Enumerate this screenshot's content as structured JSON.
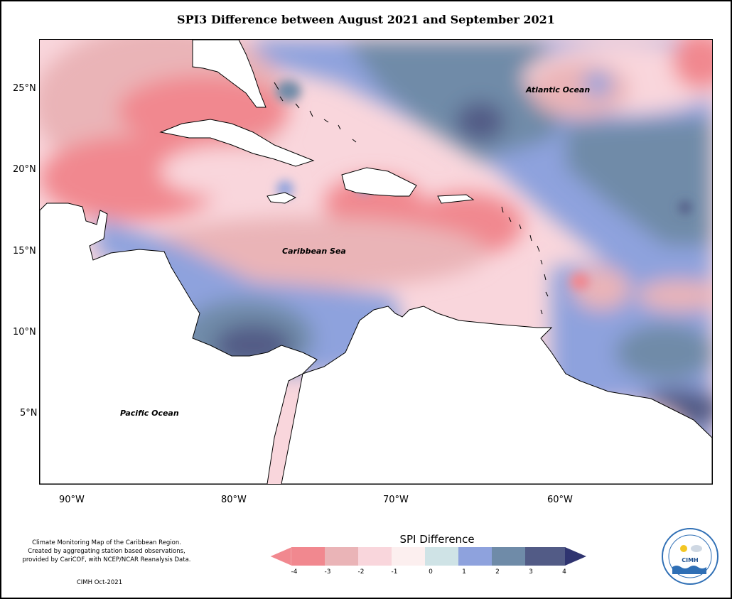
{
  "title": "SPI3 Difference between August 2021 and September 2021",
  "map": {
    "oceans": [
      {
        "name": "Atlantic Ocean"
      },
      {
        "name": "Caribbean Sea"
      },
      {
        "name": "Pacific Ocean"
      }
    ],
    "lat_ticks": [
      "25°N",
      "20°N",
      "15°N",
      "10°N",
      "5°N"
    ],
    "lon_ticks": [
      "90°W",
      "80°W",
      "70°W",
      "60°W"
    ],
    "lat_range": [
      1,
      28
    ],
    "lon_range": [
      -92,
      -50
    ]
  },
  "legend": {
    "title": "SPI Difference",
    "ticks": [
      "-4",
      "-3",
      "-2",
      "-1",
      "0",
      "1",
      "2",
      "3",
      "4"
    ],
    "colors": [
      "#f1888f",
      "#eab4b7",
      "#f9d6dc",
      "#fcefef",
      "#cfe3e6",
      "#8ea2dd",
      "#6f8ba8",
      "#525b86",
      "#2f3470"
    ]
  },
  "credits": {
    "line1": "Climate Monitoring Map of the Caribbean Region.",
    "line2": "Created by aggregating station based observations,",
    "line3": "provided by CariCOF, with NCEP/NCAR Reanalysis Data.",
    "line4": "CIMH Oct-2021"
  },
  "logo": {
    "text": "CIMH",
    "ring_text": "Caribbean Institute for Meteorology and Hydrology"
  }
}
